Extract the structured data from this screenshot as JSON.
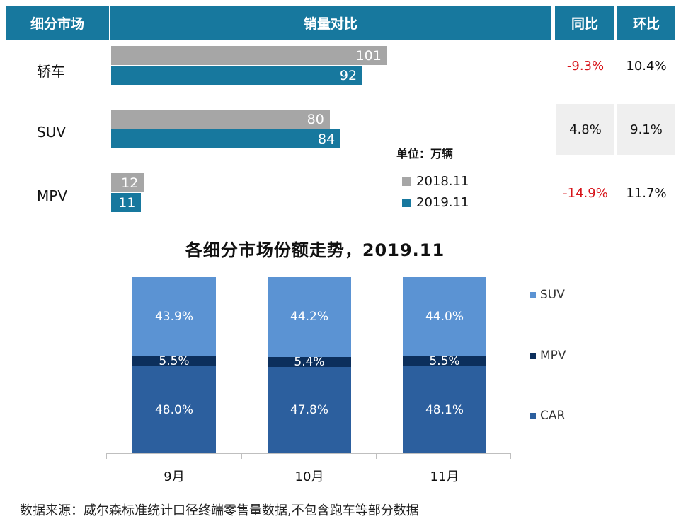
{
  "header": {
    "segment": "细分市场",
    "volume": "销量对比",
    "yoy": "同比",
    "mom": "环比"
  },
  "unit": "单位：万辆",
  "legend": {
    "y2018": "2018.11",
    "y2019": "2019.11"
  },
  "chart_data": [
    {
      "type": "bar",
      "orientation": "horizontal",
      "categories": [
        "轿车",
        "SUV",
        "MPV"
      ],
      "series": [
        {
          "name": "2018.11",
          "values": [
            101,
            80,
            12
          ]
        },
        {
          "name": "2019.11",
          "values": [
            92,
            84,
            11
          ]
        }
      ],
      "yoy": [
        "-9.3%",
        "4.8%",
        "-14.9%"
      ],
      "mom": [
        "10.4%",
        "9.1%",
        "11.7%"
      ],
      "unit": "单位：万辆",
      "colors": {
        "2018.11": "#a6a6a6",
        "2019.11": "#17789e"
      }
    },
    {
      "type": "bar",
      "stacked": true,
      "title": "各细分市场份额走势，2019.11",
      "categories": [
        "9月",
        "10月",
        "11月"
      ],
      "series": [
        {
          "name": "CAR",
          "values": [
            48.0,
            47.8,
            48.1
          ],
          "labels": [
            "48.0%",
            "47.8%",
            "48.1%"
          ]
        },
        {
          "name": "MPV",
          "values": [
            5.5,
            5.4,
            5.5
          ],
          "labels": [
            "5.5%",
            "5.4%",
            "5.5%"
          ]
        },
        {
          "name": "SUV",
          "values": [
            43.9,
            44.2,
            44.0
          ],
          "labels": [
            "43.9%",
            "44.2%",
            "44.0%"
          ]
        }
      ],
      "legend_position": "right",
      "colors": {
        "CAR": "#2c5f9e",
        "MPV": "#0c2f5c",
        "SUV": "#5b93d3"
      }
    }
  ],
  "source": "数据来源：威尔森标准统计口径终端零售量数据,不包含跑车等部分数据"
}
